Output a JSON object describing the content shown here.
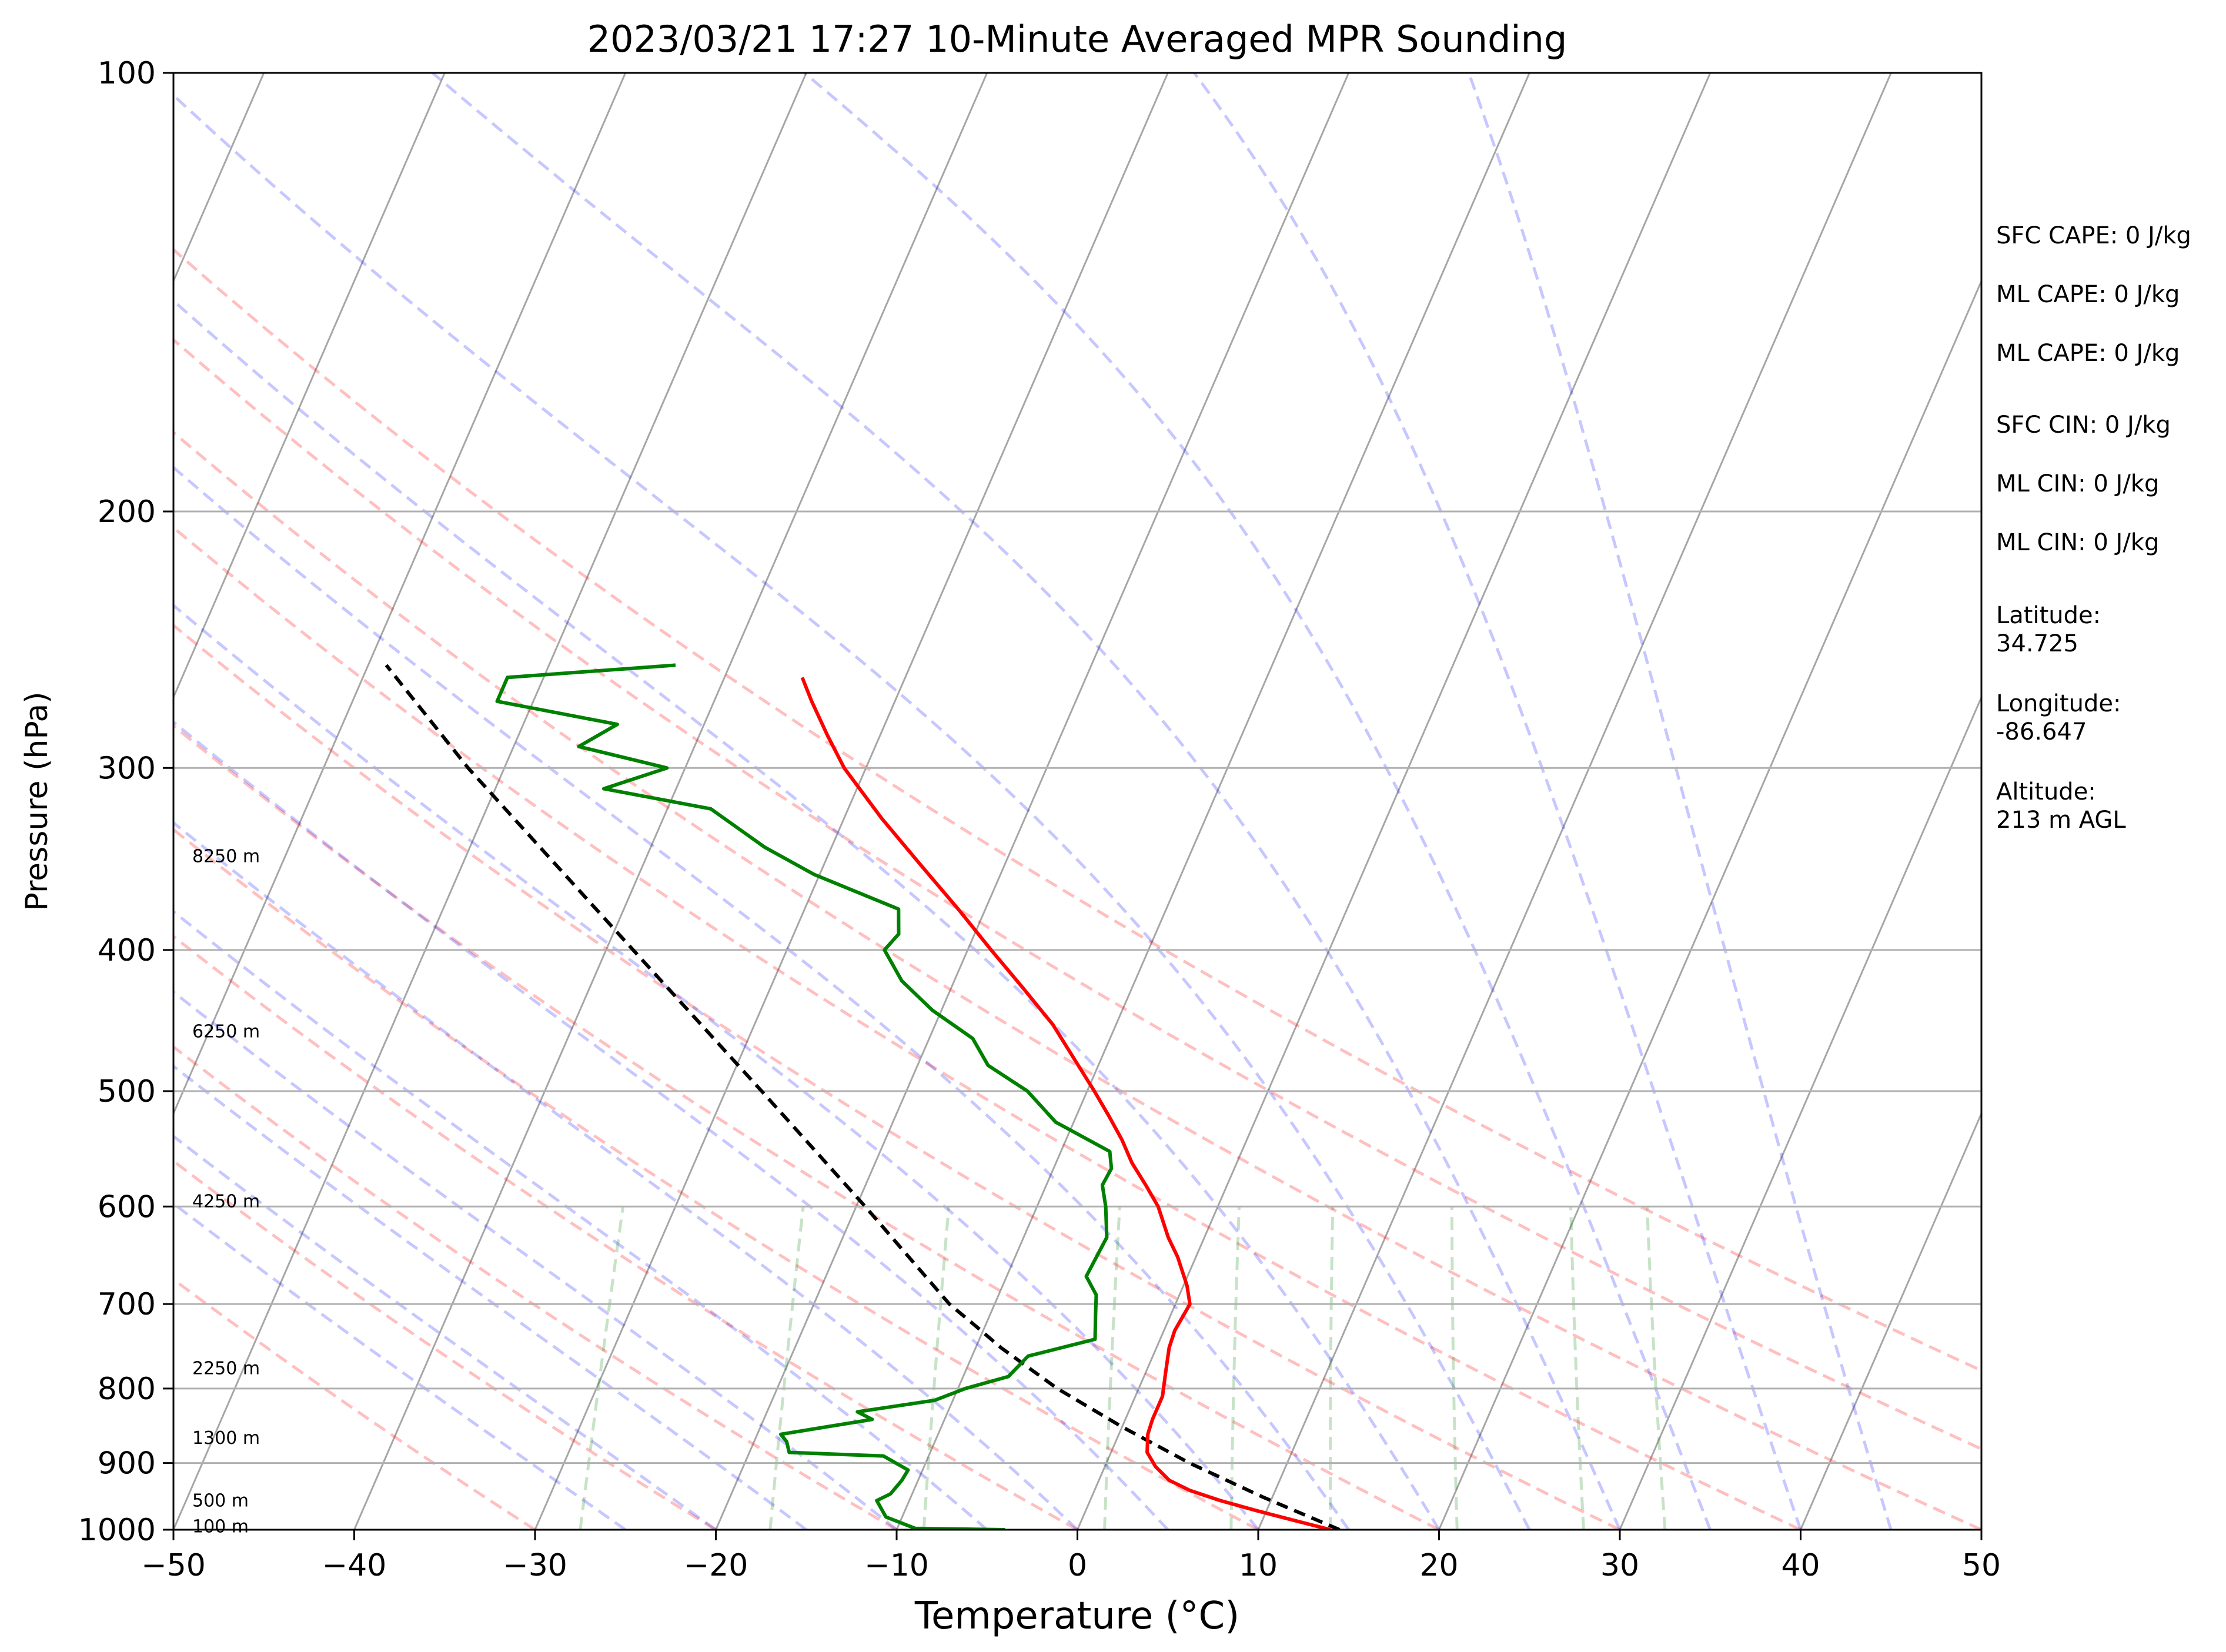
{
  "chart_data": {
    "type": "line",
    "diagram": "skew-T log-P",
    "title": "2023/03/21 17:27 10-Minute Averaged MPR Sounding",
    "xlabel": "Temperature (°C)",
    "ylabel": "Pressure (hPa)",
    "xlim": [
      -50,
      50
    ],
    "ylim": [
      1000,
      100
    ],
    "y_scale": "log",
    "x_ticks": [
      "−50",
      "−40",
      "−30",
      "−20",
      "−10",
      "0",
      "10",
      "20",
      "30",
      "40",
      "50"
    ],
    "y_ticks": [
      "100",
      "200",
      "300",
      "400",
      "500",
      "600",
      "700",
      "800",
      "900",
      "1000"
    ],
    "grid": "horizontal isobars",
    "series": [
      {
        "role": "temperature",
        "color": "#ff0000",
        "points": [
          {
            "p": 1000,
            "t": 14.0
          },
          {
            "p": 985,
            "t": 11.7
          },
          {
            "p": 970,
            "t": 9.4
          },
          {
            "p": 955,
            "t": 7.2
          },
          {
            "p": 940,
            "t": 5.3
          },
          {
            "p": 925,
            "t": 3.9
          },
          {
            "p": 905,
            "t": 2.8
          },
          {
            "p": 885,
            "t": 2.0
          },
          {
            "p": 860,
            "t": 1.6
          },
          {
            "p": 840,
            "t": 1.5
          },
          {
            "p": 810,
            "t": 1.5
          },
          {
            "p": 780,
            "t": 1.1
          },
          {
            "p": 750,
            "t": 0.7
          },
          {
            "p": 730,
            "t": 0.6
          },
          {
            "p": 700,
            "t": 0.8
          },
          {
            "p": 680,
            "t": 0.2
          },
          {
            "p": 650,
            "t": -1.0
          },
          {
            "p": 630,
            "t": -2.0
          },
          {
            "p": 600,
            "t": -3.3
          },
          {
            "p": 580,
            "t": -4.5
          },
          {
            "p": 560,
            "t": -5.8
          },
          {
            "p": 540,
            "t": -6.9
          },
          {
            "p": 520,
            "t": -8.2
          },
          {
            "p": 500,
            "t": -9.6
          },
          {
            "p": 475,
            "t": -11.5
          },
          {
            "p": 450,
            "t": -13.5
          },
          {
            "p": 425,
            "t": -16.0
          },
          {
            "p": 400,
            "t": -18.7
          },
          {
            "p": 375,
            "t": -21.5
          },
          {
            "p": 350,
            "t": -24.6
          },
          {
            "p": 325,
            "t": -27.9
          },
          {
            "p": 300,
            "t": -31.2
          },
          {
            "p": 285,
            "t": -32.9
          },
          {
            "p": 270,
            "t": -34.6
          },
          {
            "p": 260,
            "t": -35.7
          }
        ]
      },
      {
        "role": "dewpoint",
        "color": "#008000",
        "points": [
          {
            "p": 1000,
            "t": -4.0
          },
          {
            "p": 998,
            "t": -9.0
          },
          {
            "p": 980,
            "t": -10.9
          },
          {
            "p": 955,
            "t": -11.8
          },
          {
            "p": 945,
            "t": -11.2
          },
          {
            "p": 925,
            "t": -10.9
          },
          {
            "p": 910,
            "t": -10.8
          },
          {
            "p": 890,
            "t": -12.5
          },
          {
            "p": 885,
            "t": -17.8
          },
          {
            "p": 870,
            "t": -18.2
          },
          {
            "p": 860,
            "t": -18.7
          },
          {
            "p": 840,
            "t": -14.0
          },
          {
            "p": 830,
            "t": -15.0
          },
          {
            "p": 815,
            "t": -11.0
          },
          {
            "p": 800,
            "t": -9.6
          },
          {
            "p": 785,
            "t": -7.5
          },
          {
            "p": 760,
            "t": -6.9
          },
          {
            "p": 740,
            "t": -3.6
          },
          {
            "p": 710,
            "t": -4.2
          },
          {
            "p": 690,
            "t": -4.6
          },
          {
            "p": 670,
            "t": -5.6
          },
          {
            "p": 650,
            "t": -5.5
          },
          {
            "p": 630,
            "t": -5.4
          },
          {
            "p": 600,
            "t": -6.2
          },
          {
            "p": 580,
            "t": -6.9
          },
          {
            "p": 565,
            "t": -6.8
          },
          {
            "p": 550,
            "t": -7.3
          },
          {
            "p": 525,
            "t": -11.0
          },
          {
            "p": 500,
            "t": -13.3
          },
          {
            "p": 480,
            "t": -16.1
          },
          {
            "p": 460,
            "t": -17.6
          },
          {
            "p": 440,
            "t": -20.5
          },
          {
            "p": 420,
            "t": -22.9
          },
          {
            "p": 400,
            "t": -24.6
          },
          {
            "p": 390,
            "t": -24.2
          },
          {
            "p": 375,
            "t": -24.8
          },
          {
            "p": 355,
            "t": -30.3
          },
          {
            "p": 340,
            "t": -33.7
          },
          {
            "p": 320,
            "t": -37.6
          },
          {
            "p": 310,
            "t": -44.0
          },
          {
            "p": 300,
            "t": -41.0
          },
          {
            "p": 290,
            "t": -46.4
          },
          {
            "p": 280,
            "t": -44.8
          },
          {
            "p": 270,
            "t": -52.0
          },
          {
            "p": 260,
            "t": -52.0
          },
          {
            "p": 255,
            "t": -43.0
          }
        ]
      },
      {
        "role": "parcel profile",
        "color": "#000000",
        "style": "dashed",
        "points": [
          {
            "p": 1000,
            "t": 14.5
          },
          {
            "p": 950,
            "t": 9.5
          },
          {
            "p": 900,
            "t": 4.6
          },
          {
            "p": 850,
            "t": 0.0
          },
          {
            "p": 800,
            "t": -4.5
          },
          {
            "p": 750,
            "t": -8.6
          },
          {
            "p": 725,
            "t": -10.5
          },
          {
            "p": 700,
            "t": -12.5
          },
          {
            "p": 600,
            "t": -19.5
          },
          {
            "p": 500,
            "t": -28.0
          },
          {
            "p": 400,
            "t": -38.5
          },
          {
            "p": 300,
            "t": -52.0
          },
          {
            "p": 255,
            "t": -59.0
          }
        ]
      }
    ],
    "reference_lines": {
      "isotherms_c": [
        -110,
        -100,
        -90,
        -80,
        -70,
        -60,
        -50,
        -40,
        -30,
        -20,
        -10,
        0,
        10,
        20,
        30,
        40,
        50
      ],
      "dry_adiabats_c_at_1000": [
        -30,
        -20,
        -10,
        0,
        10,
        20,
        30,
        40,
        50,
        60,
        70
      ],
      "moist_adiabats_c_at_1000": [
        -25,
        -20,
        -15,
        -10,
        -5,
        0,
        5,
        10,
        15,
        20,
        25,
        30,
        35,
        40,
        45
      ],
      "mixing_ratio_lines_c_at_1000": [
        -27.5,
        -17,
        -8.5,
        1.5,
        8.5,
        14,
        21,
        28,
        32.5
      ]
    },
    "height_labels": [
      {
        "p": 345,
        "label": "8250 m"
      },
      {
        "p": 455,
        "label": "6250 m"
      },
      {
        "p": 595,
        "label": "4250 m"
      },
      {
        "p": 775,
        "label": "2250 m"
      },
      {
        "p": 865,
        "label": "1300 m"
      },
      {
        "p": 955,
        "label": "500 m"
      },
      {
        "p": 995,
        "label": "100 m"
      }
    ]
  },
  "info": {
    "sfc_cape": "SFC CAPE: 0 J/kg",
    "ml_cape_1": "ML CAPE: 0 J/kg",
    "ml_cape_2": "ML CAPE: 0 J/kg",
    "sfc_cin": "SFC CIN: 0 J/kg",
    "ml_cin_1": "ML CIN: 0 J/kg",
    "ml_cin_2": "ML CIN: 0 J/kg",
    "latitude_label": "Latitude:",
    "latitude_value": "34.725",
    "longitude_label": "Longitude:",
    "longitude_value": "-86.647",
    "altitude_label": "Altitude:",
    "altitude_value": "213 m AGL"
  }
}
